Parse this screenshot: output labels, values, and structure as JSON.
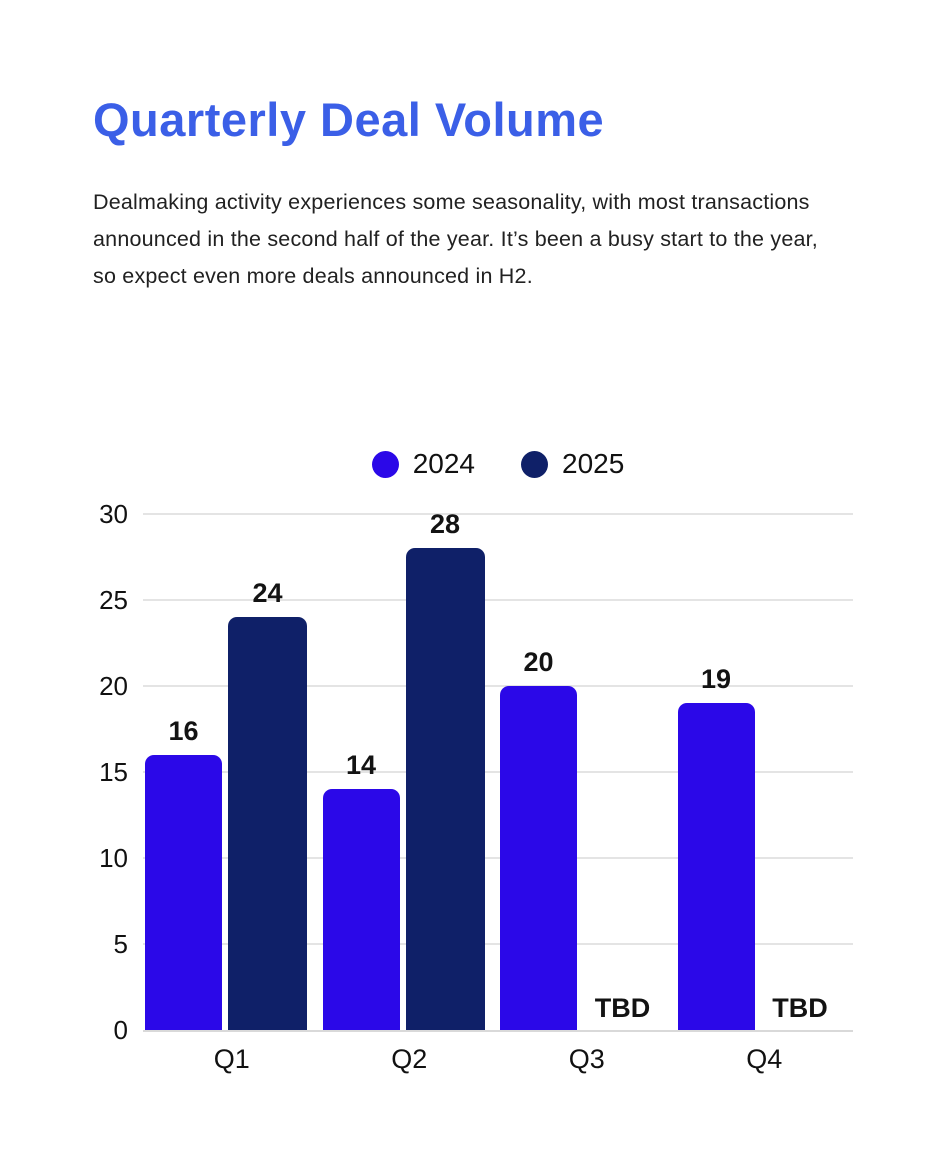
{
  "header": {
    "title": "Quarterly Deal Volume",
    "description": "Dealmaking activity experiences some seasonality, with most transactions announced in the second half of the year. It’s been a busy start to the year, so expect even more deals announced in H2."
  },
  "theme": {
    "title_color": "#3B5FE7",
    "series_2024_color": "#2B08E8",
    "series_2025_color": "#0F2068"
  },
  "chart_data": {
    "type": "bar",
    "title": "Quarterly Deal Volume",
    "categories": [
      "Q1",
      "Q2",
      "Q3",
      "Q4"
    ],
    "series": [
      {
        "name": "2024",
        "color": "#2B08E8",
        "values": [
          16,
          14,
          20,
          19
        ]
      },
      {
        "name": "2025",
        "color": "#0F2068",
        "values": [
          24,
          28,
          null,
          null
        ]
      }
    ],
    "null_label": "TBD",
    "xlabel": "",
    "ylabel": "",
    "ylim": [
      0,
      30
    ],
    "yticks": [
      0,
      5,
      10,
      15,
      20,
      25,
      30
    ],
    "grid": true,
    "legend_position": "top-center"
  }
}
